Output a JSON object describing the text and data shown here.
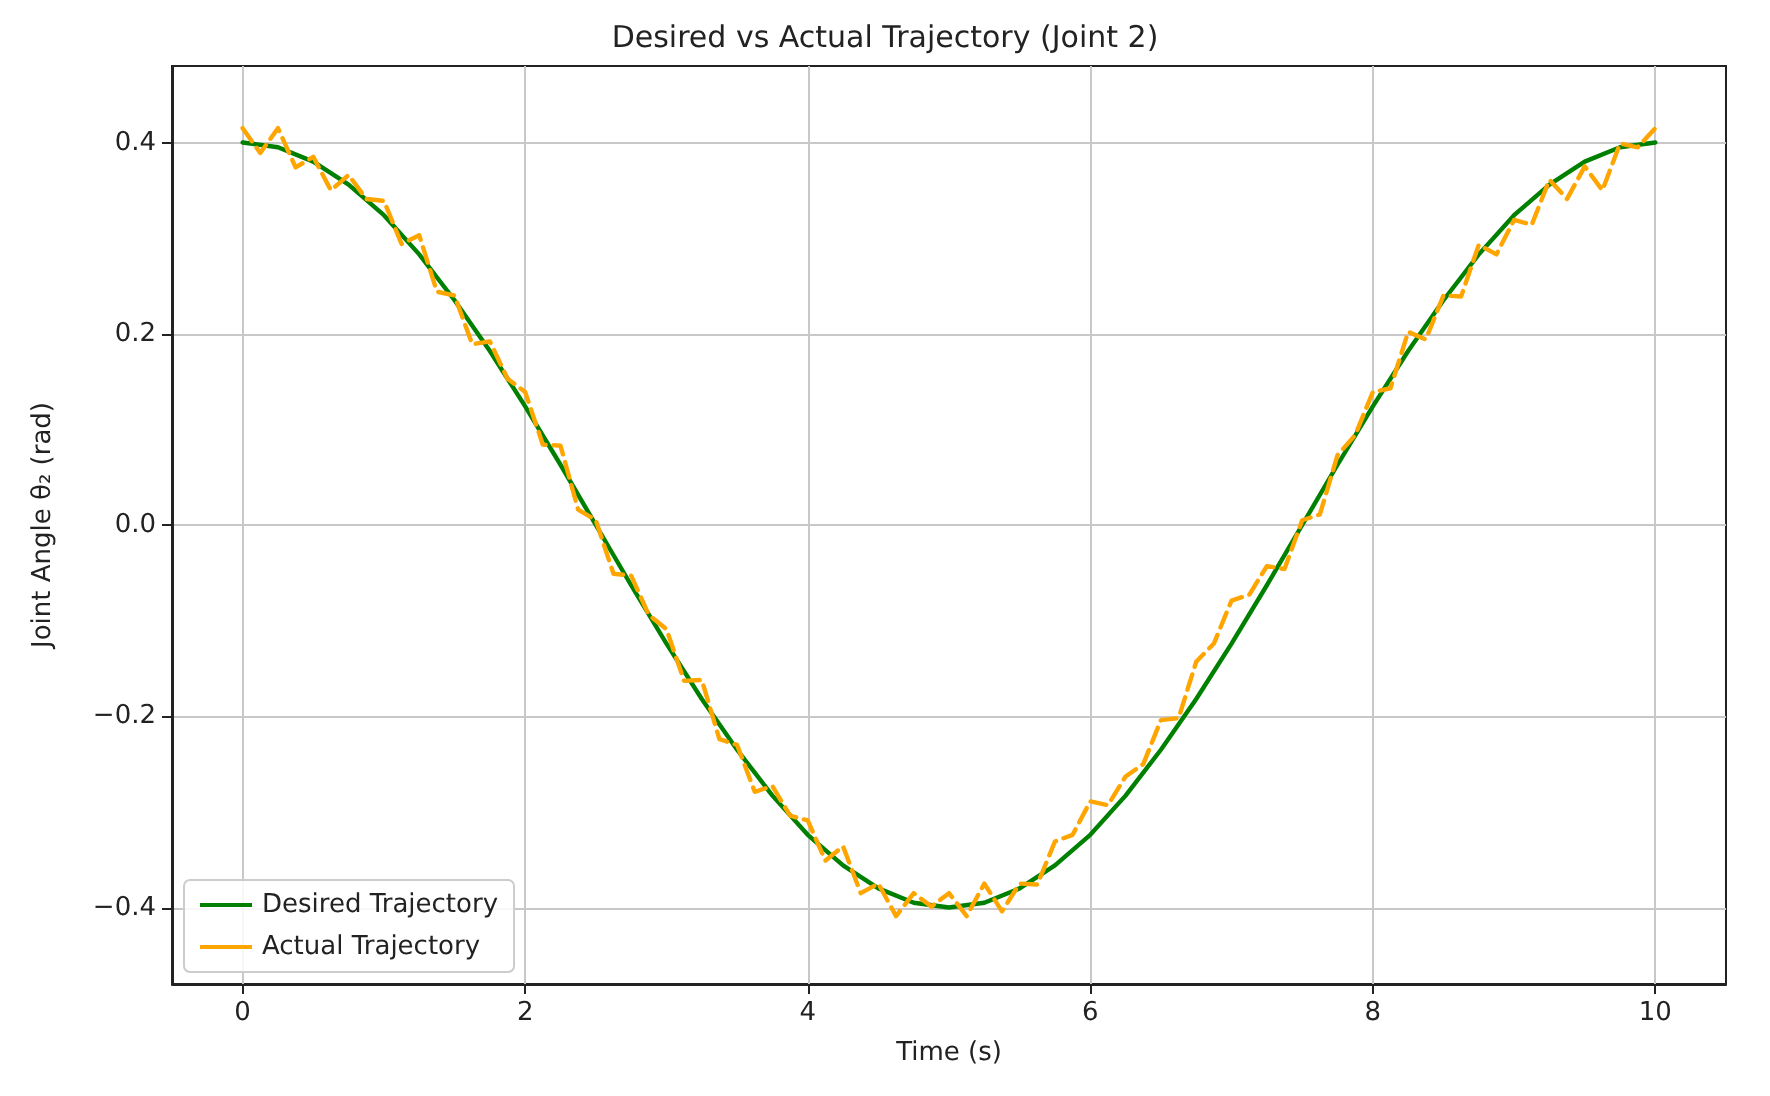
{
  "chart_data": {
    "type": "line",
    "title": "Desired vs Actual Trajectory (Joint 2)",
    "xlabel": "Time (s)",
    "ylabel": "Joint Angle θ₂ (rad)",
    "xlim": [
      -0.5,
      10.5
    ],
    "xticks": [
      0,
      2,
      4,
      6,
      8,
      10
    ],
    "ylim": [
      -0.48,
      0.48
    ],
    "yticks": [
      {
        "value": -0.4,
        "label": "−0.4"
      },
      {
        "value": -0.2,
        "label": "−0.2"
      },
      {
        "value": 0,
        "label": "0.0"
      },
      {
        "value": 0.2,
        "label": "0.2"
      },
      {
        "value": 0.4,
        "label": "0.4"
      }
    ],
    "grid": true,
    "legend": "bottom left",
    "marker": "none",
    "series": [
      {
        "name": "Desired Trajectory",
        "color": "#008000",
        "line_style": "solid",
        "x": [
          0,
          0.25,
          0.5,
          0.75,
          1,
          1.25,
          1.5,
          1.75,
          2,
          2.25,
          2.5,
          2.75,
          3,
          3.25,
          3.5,
          3.75,
          4,
          4.25,
          4.5,
          4.75,
          5,
          5.25,
          5.5,
          5.75,
          6,
          6.25,
          6.5,
          6.75,
          7,
          7.25,
          7.5,
          7.75,
          8,
          8.25,
          8.5,
          8.75,
          9,
          9.25,
          9.5,
          9.75,
          10
        ],
        "values": [
          0.4,
          0.395,
          0.38,
          0.356,
          0.324,
          0.283,
          0.235,
          0.182,
          0.124,
          0.063,
          0,
          -0.063,
          -0.124,
          -0.182,
          -0.235,
          -0.283,
          -0.324,
          -0.356,
          -0.38,
          -0.395,
          -0.4,
          -0.395,
          -0.38,
          -0.356,
          -0.324,
          -0.283,
          -0.235,
          -0.182,
          -0.124,
          -0.063,
          0,
          0.063,
          0.124,
          0.182,
          0.235,
          0.283,
          0.324,
          0.356,
          0.38,
          0.395,
          0.4
        ]
      },
      {
        "name": "Actual Trajectory",
        "color": "#ffa500",
        "line_style": "dashed",
        "x": [
          0,
          0.125,
          0.25,
          0.375,
          0.5,
          0.625,
          0.75,
          0.875,
          1,
          1.125,
          1.25,
          1.375,
          1.5,
          1.625,
          1.75,
          1.875,
          2,
          2.125,
          2.25,
          2.375,
          2.5,
          2.625,
          2.75,
          2.875,
          3,
          3.125,
          3.25,
          3.375,
          3.5,
          3.625,
          3.75,
          3.875,
          4,
          4.125,
          4.25,
          4.375,
          4.5,
          4.625,
          4.75,
          4.875,
          5,
          5.125,
          5.25,
          5.375,
          5.5,
          5.625,
          5.75,
          5.875,
          6,
          6.125,
          6.25,
          6.375,
          6.5,
          6.625,
          6.75,
          6.875,
          7,
          7.125,
          7.25,
          7.375,
          7.5,
          7.625,
          7.75,
          7.875,
          8,
          8.125,
          8.25,
          8.375,
          8.5,
          8.625,
          8.75,
          8.875,
          9,
          9.125,
          9.25,
          9.375,
          9.5,
          9.625,
          9.75,
          9.875,
          10
        ],
        "values": [
          0.415,
          0.389,
          0.415,
          0.374,
          0.385,
          0.35,
          0.366,
          0.341,
          0.339,
          0.294,
          0.303,
          0.244,
          0.24,
          0.189,
          0.192,
          0.153,
          0.139,
          0.084,
          0.083,
          0.016,
          0.005,
          -0.051,
          -0.053,
          -0.094,
          -0.109,
          -0.163,
          -0.162,
          -0.224,
          -0.23,
          -0.279,
          -0.273,
          -0.304,
          -0.309,
          -0.351,
          -0.336,
          -0.385,
          -0.375,
          -0.409,
          -0.385,
          -0.399,
          -0.385,
          -0.409,
          -0.375,
          -0.404,
          -0.375,
          -0.376,
          -0.331,
          -0.324,
          -0.289,
          -0.293,
          -0.263,
          -0.25,
          -0.204,
          -0.202,
          -0.143,
          -0.124,
          -0.079,
          -0.073,
          -0.043,
          -0.046,
          0.005,
          0.011,
          0.073,
          0.094,
          0.139,
          0.143,
          0.202,
          0.194,
          0.24,
          0.239,
          0.293,
          0.283,
          0.319,
          0.314,
          0.361,
          0.341,
          0.375,
          0.35,
          0.399,
          0.395,
          0.415
        ]
      }
    ]
  }
}
